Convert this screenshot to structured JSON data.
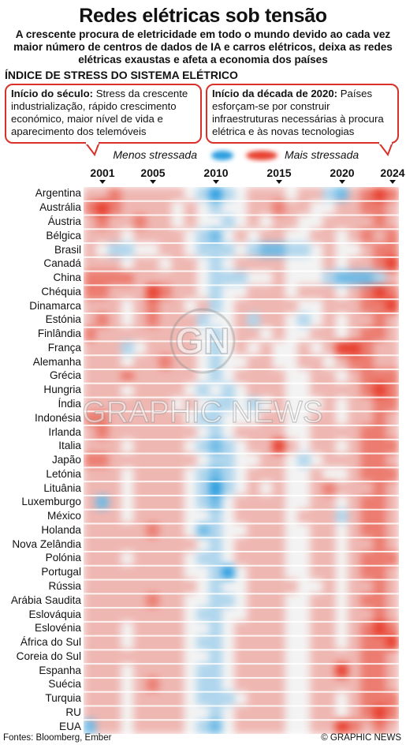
{
  "header": {
    "title": "Redes elétricas sob tensão",
    "subtitle": "A crescente procura de eletricidade em todo o mundo devido ao cada vez maior número de centros de dados de IA e carros elétricos, deixa as redes elétricas exaustas e afeta a economia dos países",
    "section": "ÍNDICE DE STRESS DO SISTEMA ELÉTRICO"
  },
  "callouts": [
    {
      "heading": "Início do século:",
      "text": " Stress da crescente industrialização, rápido crescimento económico, maior nível de vida e aparecimento dos telemóveis"
    },
    {
      "heading": "Início da década de 2020:",
      "text": " Países esforçam-se por construir infraestruturas necessárias à procura elétrica e às novas tecnologias"
    }
  ],
  "legend": {
    "low": "Menos stressada",
    "high": "Mais stressada",
    "low_color": "#2a9de0",
    "high_color": "#e8402f"
  },
  "footer": {
    "source": "Fontes: Bloomberg, Ember",
    "credit": "© GRAPHIC NEWS"
  },
  "watermark": {
    "mark": "GN",
    "text": "GRAPHIC NEWS"
  },
  "chart_data": {
    "type": "heatmap",
    "title": "ÍNDICE DE STRESS DO SISTEMA ELÉTRICO",
    "x_start": 2000,
    "x_end": 2024,
    "x_ticks": [
      2001,
      2005,
      2010,
      2015,
      2020,
      2024
    ],
    "value_range": [
      -3,
      3
    ],
    "colors": {
      "low": "#2a9de0",
      "neutral": "#f3f3f3",
      "high": "#e8402f"
    },
    "rows": [
      {
        "name": "Argentina",
        "values": [
          1,
          1,
          2,
          1,
          1,
          1,
          1,
          1,
          0,
          -1,
          -3,
          -1,
          0,
          1,
          1,
          1,
          0,
          1,
          1,
          -1,
          -2,
          1,
          2,
          3,
          2
        ]
      },
      {
        "name": "Austrália",
        "values": [
          2,
          3,
          2,
          1,
          1,
          1,
          1,
          0,
          1,
          0,
          -1,
          0,
          0,
          1,
          1,
          2,
          1,
          1,
          0,
          0,
          1,
          1,
          2,
          2,
          1
        ]
      },
      {
        "name": "Áustria",
        "values": [
          1,
          2,
          1,
          1,
          2,
          1,
          1,
          0,
          1,
          0,
          0,
          -1,
          0,
          1,
          0,
          1,
          1,
          0,
          0,
          1,
          1,
          1,
          1,
          2,
          1
        ]
      },
      {
        "name": "Bélgica",
        "values": [
          1,
          1,
          1,
          0,
          1,
          1,
          1,
          1,
          0,
          -1,
          -2,
          0,
          1,
          0,
          1,
          1,
          0,
          0,
          1,
          1,
          0,
          1,
          2,
          1,
          2
        ]
      },
      {
        "name": "Brasil",
        "values": [
          1,
          0,
          -1,
          -1,
          0,
          0,
          1,
          1,
          0,
          -1,
          -1,
          -1,
          0,
          -1,
          -2,
          -2,
          -1,
          -1,
          0,
          1,
          0,
          0,
          1,
          2,
          2
        ]
      },
      {
        "name": "Canadá",
        "values": [
          1,
          1,
          1,
          0,
          1,
          1,
          0,
          1,
          1,
          0,
          -1,
          0,
          1,
          1,
          1,
          1,
          0,
          0,
          0,
          1,
          0,
          1,
          1,
          2,
          3
        ]
      },
      {
        "name": "China",
        "values": [
          2,
          2,
          2,
          2,
          1,
          1,
          1,
          1,
          1,
          0,
          -1,
          -1,
          -1,
          0,
          0,
          1,
          0,
          0,
          0,
          -1,
          -2,
          -2,
          -2,
          -1,
          1
        ]
      },
      {
        "name": "Chéquia",
        "values": [
          2,
          2,
          1,
          1,
          1,
          3,
          2,
          1,
          1,
          0,
          -1,
          0,
          0,
          1,
          1,
          1,
          0,
          1,
          1,
          1,
          0,
          1,
          2,
          3,
          2
        ]
      },
      {
        "name": "Dinamarca",
        "values": [
          1,
          1,
          1,
          0,
          1,
          2,
          1,
          1,
          0,
          1,
          -1,
          0,
          1,
          1,
          1,
          1,
          1,
          0,
          0,
          1,
          1,
          1,
          2,
          2,
          3
        ]
      },
      {
        "name": "Estónia",
        "values": [
          1,
          2,
          1,
          0,
          1,
          2,
          1,
          1,
          1,
          -1,
          0,
          0,
          1,
          -1,
          1,
          1,
          0,
          -1,
          0,
          1,
          0,
          1,
          1,
          2,
          1
        ]
      },
      {
        "name": "Finlândia",
        "values": [
          2,
          1,
          1,
          1,
          1,
          1,
          1,
          1,
          1,
          0,
          -1,
          0,
          1,
          1,
          0,
          1,
          0,
          0,
          1,
          1,
          0,
          1,
          2,
          2,
          1
        ]
      },
      {
        "name": "França",
        "values": [
          1,
          1,
          1,
          -1,
          0,
          1,
          1,
          1,
          1,
          0,
          -1,
          0,
          1,
          0,
          1,
          0,
          0,
          1,
          0,
          1,
          3,
          3,
          2,
          1,
          1
        ]
      },
      {
        "name": "Alemanha",
        "values": [
          1,
          1,
          1,
          0,
          1,
          1,
          2,
          1,
          1,
          0,
          -1,
          0,
          0,
          1,
          1,
          0,
          0,
          1,
          1,
          0,
          1,
          2,
          2,
          1,
          1
        ]
      },
      {
        "name": "Grécia",
        "values": [
          1,
          1,
          1,
          2,
          1,
          1,
          1,
          1,
          1,
          0,
          -1,
          0,
          1,
          1,
          1,
          1,
          0,
          0,
          1,
          1,
          0,
          1,
          2,
          2,
          2
        ]
      },
      {
        "name": "Hungria",
        "values": [
          1,
          1,
          1,
          0,
          1,
          1,
          1,
          1,
          0,
          -1,
          0,
          -1,
          0,
          1,
          1,
          1,
          0,
          0,
          1,
          1,
          1,
          1,
          2,
          3,
          2
        ]
      },
      {
        "name": "Índia",
        "values": [
          1,
          1,
          1,
          1,
          1,
          1,
          1,
          0,
          1,
          0,
          -1,
          -1,
          0,
          -1,
          0,
          1,
          0,
          0,
          0,
          1,
          0,
          1,
          1,
          2,
          2
        ]
      },
      {
        "name": "Indonésia",
        "values": [
          2,
          2,
          1,
          1,
          1,
          1,
          1,
          1,
          0,
          -1,
          -1,
          0,
          0,
          0,
          1,
          1,
          0,
          0,
          1,
          1,
          0,
          1,
          1,
          2,
          1
        ]
      },
      {
        "name": "Irlanda",
        "values": [
          1,
          2,
          1,
          1,
          1,
          1,
          1,
          1,
          1,
          0,
          -1,
          0,
          1,
          1,
          1,
          1,
          0,
          0,
          1,
          1,
          1,
          1,
          2,
          2,
          1
        ]
      },
      {
        "name": "Italia",
        "values": [
          1,
          1,
          1,
          0,
          1,
          1,
          1,
          1,
          0,
          -1,
          -2,
          -1,
          0,
          1,
          1,
          3,
          1,
          0,
          1,
          1,
          0,
          1,
          2,
          2,
          2
        ]
      },
      {
        "name": "Japão",
        "values": [
          2,
          2,
          1,
          1,
          1,
          1,
          1,
          1,
          1,
          0,
          -1,
          -1,
          0,
          0,
          1,
          1,
          0,
          -1,
          0,
          1,
          1,
          1,
          2,
          2,
          1
        ]
      },
      {
        "name": "Letónia",
        "values": [
          1,
          1,
          1,
          0,
          1,
          1,
          1,
          1,
          0,
          -1,
          -2,
          -1,
          0,
          1,
          1,
          1,
          0,
          0,
          1,
          0,
          0,
          1,
          2,
          2,
          2
        ]
      },
      {
        "name": "Lituânia",
        "values": [
          1,
          1,
          1,
          0,
          1,
          1,
          1,
          1,
          0,
          -1,
          -3,
          -1,
          0,
          1,
          0,
          1,
          0,
          0,
          1,
          2,
          1,
          1,
          1,
          2,
          1
        ]
      },
      {
        "name": "Luxemburgo",
        "values": [
          1,
          -2,
          1,
          0,
          1,
          1,
          1,
          1,
          0,
          -1,
          -2,
          0,
          1,
          1,
          1,
          1,
          0,
          0,
          1,
          1,
          0,
          1,
          2,
          2,
          1
        ]
      },
      {
        "name": "México",
        "values": [
          1,
          1,
          1,
          0,
          1,
          1,
          1,
          1,
          0,
          0,
          -1,
          0,
          1,
          1,
          1,
          1,
          0,
          1,
          1,
          1,
          -1,
          1,
          2,
          2,
          1
        ]
      },
      {
        "name": "Holanda",
        "values": [
          1,
          1,
          1,
          1,
          1,
          2,
          1,
          1,
          0,
          -2,
          -1,
          0,
          0,
          1,
          1,
          1,
          0,
          0,
          1,
          1,
          0,
          1,
          2,
          2,
          1
        ]
      },
      {
        "name": "Nova Zelândia",
        "values": [
          1,
          1,
          1,
          1,
          1,
          1,
          1,
          1,
          1,
          0,
          -1,
          0,
          1,
          1,
          1,
          1,
          0,
          0,
          1,
          1,
          0,
          1,
          1,
          2,
          1
        ]
      },
      {
        "name": "Polónia",
        "values": [
          1,
          1,
          1,
          0,
          1,
          1,
          1,
          1,
          0,
          -1,
          -1,
          0,
          1,
          1,
          1,
          1,
          0,
          0,
          1,
          1,
          0,
          1,
          2,
          2,
          2
        ]
      },
      {
        "name": "Portugal",
        "values": [
          1,
          1,
          1,
          1,
          1,
          1,
          1,
          1,
          0,
          0,
          -1,
          -3,
          0,
          1,
          1,
          1,
          0,
          0,
          1,
          1,
          0,
          1,
          2,
          2,
          1
        ]
      },
      {
        "name": "Rússia",
        "values": [
          1,
          1,
          1,
          1,
          1,
          1,
          1,
          1,
          1,
          0,
          -1,
          0,
          0,
          1,
          1,
          1,
          1,
          0,
          0,
          1,
          0,
          1,
          1,
          2,
          1
        ]
      },
      {
        "name": "Arábia Saudita",
        "values": [
          1,
          1,
          1,
          1,
          1,
          2,
          1,
          1,
          0,
          0,
          -1,
          -1,
          0,
          1,
          1,
          1,
          0,
          0,
          1,
          1,
          0,
          1,
          2,
          2,
          1
        ]
      },
      {
        "name": "Eslováquia",
        "values": [
          1,
          1,
          1,
          1,
          1,
          1,
          1,
          1,
          0,
          -1,
          -1,
          0,
          0,
          1,
          1,
          1,
          0,
          0,
          1,
          1,
          0,
          1,
          1,
          2,
          1
        ]
      },
      {
        "name": "Eslovénia",
        "values": [
          1,
          1,
          1,
          0,
          1,
          1,
          1,
          1,
          0,
          0,
          -1,
          0,
          1,
          1,
          1,
          1,
          0,
          0,
          1,
          1,
          0,
          1,
          2,
          3,
          2
        ]
      },
      {
        "name": "África do Sul",
        "values": [
          1,
          1,
          1,
          0,
          1,
          1,
          1,
          1,
          0,
          -1,
          -1,
          0,
          1,
          1,
          1,
          1,
          0,
          0,
          1,
          1,
          0,
          1,
          2,
          2,
          3
        ]
      },
      {
        "name": "Coreia do Sul",
        "values": [
          1,
          1,
          1,
          1,
          1,
          1,
          1,
          1,
          0,
          0,
          -1,
          0,
          1,
          1,
          1,
          1,
          0,
          0,
          1,
          1,
          1,
          1,
          2,
          2,
          1
        ]
      },
      {
        "name": "Espanha",
        "values": [
          1,
          1,
          1,
          0,
          1,
          1,
          1,
          1,
          0,
          -1,
          -1,
          0,
          1,
          1,
          1,
          1,
          0,
          0,
          1,
          1,
          3,
          1,
          2,
          2,
          1
        ]
      },
      {
        "name": "Suécia",
        "values": [
          1,
          1,
          1,
          0,
          1,
          2,
          1,
          1,
          0,
          -1,
          -1,
          0,
          1,
          1,
          1,
          1,
          0,
          0,
          1,
          1,
          1,
          1,
          2,
          2,
          1
        ]
      },
      {
        "name": "Turquia",
        "values": [
          1,
          1,
          1,
          0,
          1,
          1,
          1,
          1,
          0,
          -1,
          -1,
          -1,
          0,
          1,
          1,
          1,
          0,
          0,
          1,
          1,
          0,
          1,
          2,
          2,
          2
        ]
      },
      {
        "name": "RU",
        "values": [
          1,
          1,
          1,
          0,
          1,
          1,
          1,
          1,
          0,
          0,
          -1,
          0,
          1,
          1,
          1,
          1,
          0,
          0,
          1,
          1,
          0,
          1,
          2,
          3,
          2
        ]
      },
      {
        "name": "EUA",
        "values": [
          -2,
          1,
          1,
          0,
          1,
          1,
          1,
          1,
          0,
          -1,
          -2,
          0,
          1,
          1,
          1,
          1,
          0,
          0,
          1,
          1,
          3,
          2,
          1,
          2,
          1
        ]
      }
    ]
  }
}
